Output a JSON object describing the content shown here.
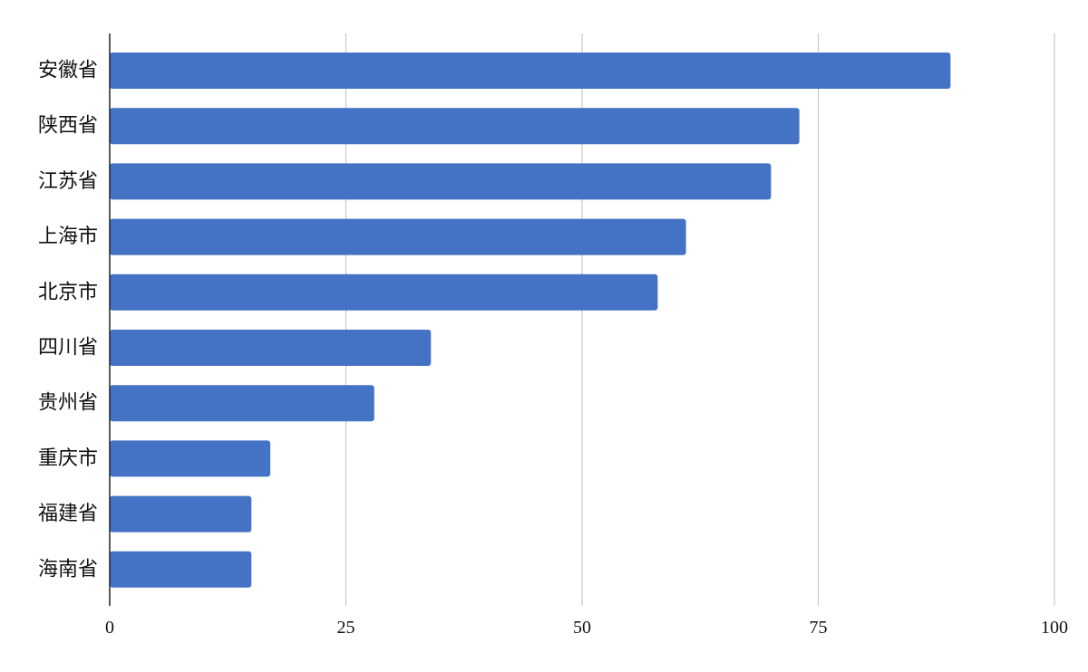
{
  "chart_data": {
    "type": "bar",
    "orientation": "horizontal",
    "categories": [
      "安徽省",
      "陕西省",
      "江苏省",
      "上海市",
      "北京市",
      "四川省",
      "贵州省",
      "重庆市",
      "福建省",
      "海南省"
    ],
    "values": [
      89,
      73,
      70,
      61,
      58,
      34,
      28,
      17,
      15,
      15
    ],
    "xlim": [
      0,
      100
    ],
    "x_ticks": [
      "0",
      "25",
      "50",
      "75",
      "100"
    ],
    "title": "",
    "xlabel": "",
    "ylabel": "",
    "grid": "vertical",
    "legend": "none",
    "bar_color": "#4472c4",
    "grid_color": "#c8c8c8",
    "axis_color": "#222222"
  }
}
